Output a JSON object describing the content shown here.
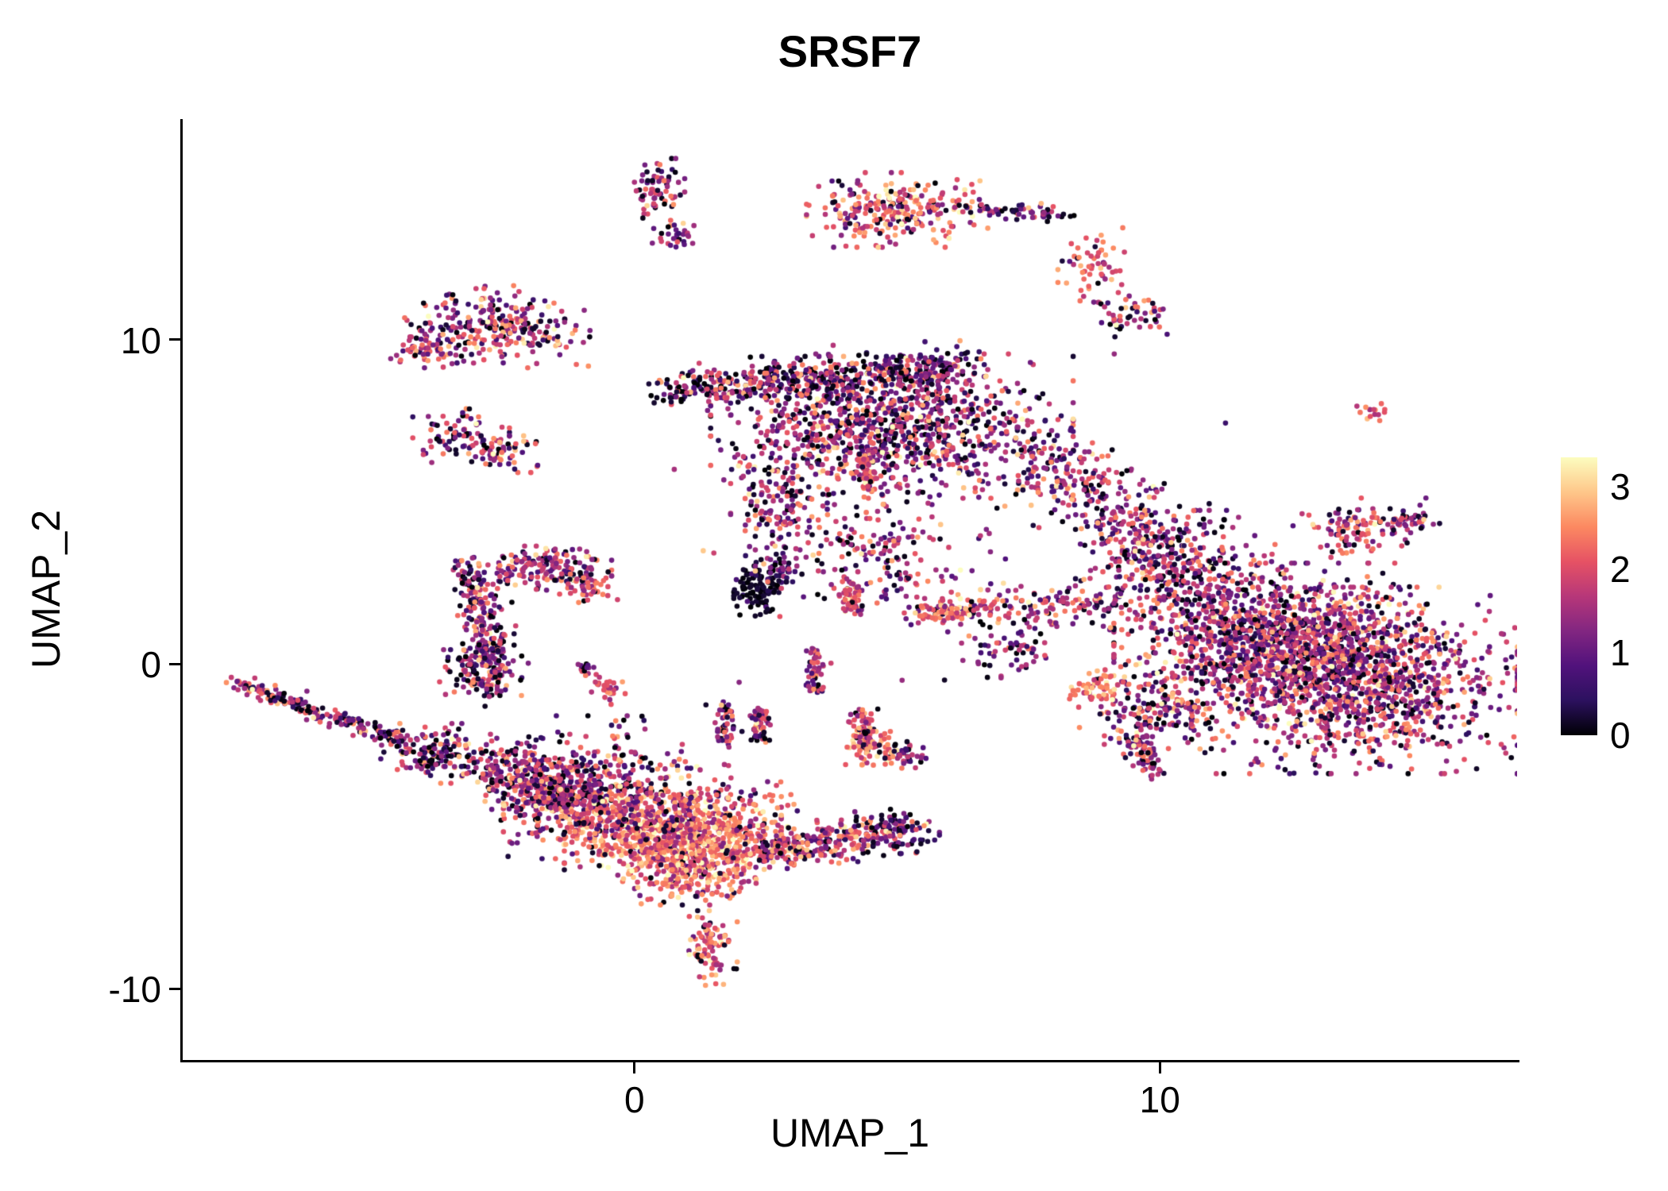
{
  "chart_data": {
    "type": "scatter",
    "title": "SRSF7",
    "xlabel": "UMAP_1",
    "ylabel": "UMAP_2",
    "xlim": [
      -8.6,
      16.8
    ],
    "ylim": [
      -12.2,
      16.8
    ],
    "x_ticks": [
      0,
      10
    ],
    "y_ticks": [
      -10,
      0,
      10
    ],
    "grid": false,
    "point_radius": 3.3,
    "color_max": 3.2,
    "background": "#ffffff",
    "axis_color": "#000000",
    "legend": {
      "position": "right",
      "ticks": [
        0,
        1,
        2,
        3
      ],
      "vmin": 0,
      "vmax": 3.35
    },
    "colormap": [
      {
        "t": 0,
        "c": "#000004"
      },
      {
        "t": 0.125,
        "c": "#2c115f"
      },
      {
        "t": 0.25,
        "c": "#51127c"
      },
      {
        "t": 0.375,
        "c": "#822681"
      },
      {
        "t": 0.5,
        "c": "#b73779"
      },
      {
        "t": 0.625,
        "c": "#e65264"
      },
      {
        "t": 0.75,
        "c": "#fc8961"
      },
      {
        "t": 0.875,
        "c": "#fec78a"
      },
      {
        "t": 1,
        "c": "#fcfdbf"
      }
    ],
    "clusters": [
      {
        "cx": 0.45,
        "cy": 14.55,
        "sx": 0.22,
        "sy": 0.45,
        "n": 70,
        "mean": 1.7,
        "sd": 0.8,
        "p0": 0.15
      },
      {
        "cx": 0.8,
        "cy": 13.25,
        "sx": 0.2,
        "sy": 0.22,
        "n": 30,
        "mean": 1.1,
        "sd": 0.7,
        "p0": 0.2
      },
      {
        "cx": 5.0,
        "cy": 14.0,
        "sx": 0.75,
        "sy": 0.5,
        "n": 260,
        "mean": 2.0,
        "sd": 0.6,
        "p0": 0.08
      },
      {
        "x1": 6.2,
        "y1": 14.1,
        "x2": 8.3,
        "y2": 13.8,
        "jitter": 0.15,
        "n": 60,
        "mean": 1.2,
        "sd": 0.8,
        "p0": 0.25
      },
      {
        "cx": 8.75,
        "cy": 12.3,
        "sx": 0.3,
        "sy": 0.5,
        "n": 60,
        "mean": 1.9,
        "sd": 0.6,
        "p0": 0.1
      },
      {
        "cx": 9.45,
        "cy": 10.75,
        "sx": 0.35,
        "sy": 0.3,
        "n": 50,
        "mean": 1.6,
        "sd": 0.8,
        "p0": 0.15
      },
      {
        "cx": -2.55,
        "cy": 10.4,
        "sx": 0.85,
        "sy": 0.55,
        "n": 280,
        "mean": 1.5,
        "sd": 0.75,
        "p0": 0.12
      },
      {
        "cx": -3.95,
        "cy": 9.7,
        "sx": 0.3,
        "sy": 0.22,
        "n": 45,
        "mean": 1.9,
        "sd": 0.5,
        "p0": 0.08
      },
      {
        "cx": -3.3,
        "cy": 6.95,
        "sx": 0.4,
        "sy": 0.4,
        "n": 80,
        "mean": 1.4,
        "sd": 0.75,
        "p0": 0.15
      },
      {
        "cx": -2.45,
        "cy": 6.55,
        "sx": 0.3,
        "sy": 0.28,
        "n": 50,
        "mean": 1.7,
        "sd": 0.6,
        "p0": 0.1
      },
      {
        "x1": 0.7,
        "y1": 8.45,
        "x2": 6.3,
        "y2": 9.15,
        "jitter": 0.3,
        "n": 520,
        "mean": 1.25,
        "sd": 0.85,
        "p0": 0.22
      },
      {
        "cx": 4.9,
        "cy": 7.3,
        "sx": 1.5,
        "sy": 0.95,
        "n": 950,
        "mean": 1.4,
        "sd": 0.8,
        "p0": 0.15
      },
      {
        "x1": 7.6,
        "y1": 6.6,
        "x2": 9.9,
        "y2": 3.6,
        "jitter": 0.55,
        "n": 320,
        "mean": 1.4,
        "sd": 0.75,
        "p0": 0.15
      },
      {
        "cx": 2.75,
        "cy": 5.1,
        "sx": 0.4,
        "sy": 0.8,
        "n": 140,
        "mean": 1.5,
        "sd": 0.7,
        "p0": 0.12
      },
      {
        "x1": 4.35,
        "y1": 6.6,
        "x2": 4.45,
        "y2": 5.3,
        "jitter": 0.12,
        "n": 70,
        "mean": 2.0,
        "sd": 0.5,
        "p0": 0.05
      },
      {
        "cx": 2.35,
        "cy": 2.3,
        "sx": 0.2,
        "sy": 0.4,
        "n": 100,
        "mean": 0.25,
        "sd": 0.35,
        "p0": 0.7
      },
      {
        "cx": 2.75,
        "cy": 2.9,
        "sx": 0.25,
        "sy": 0.3,
        "n": 40,
        "mean": 0.8,
        "sd": 0.6,
        "p0": 0.3
      },
      {
        "cx": 4.6,
        "cy": 3.4,
        "sx": 1.0,
        "sy": 0.8,
        "n": 150,
        "mean": 1.5,
        "sd": 0.7,
        "p0": 0.15
      },
      {
        "x1": 4.15,
        "y1": 2.6,
        "x2": 4.2,
        "y2": 1.4,
        "jitter": 0.12,
        "n": 60,
        "mean": 1.9,
        "sd": 0.5,
        "p0": 0.08
      },
      {
        "x1": 5.4,
        "y1": 1.65,
        "x2": 9.2,
        "y2": 1.9,
        "jitter": 0.3,
        "n": 180,
        "mean": 1.6,
        "sd": 0.7,
        "p0": 0.12
      },
      {
        "cx": 5.9,
        "cy": 1.6,
        "sx": 0.4,
        "sy": 0.12,
        "n": 60,
        "mean": 2.2,
        "sd": 0.4,
        "p0": 0.05
      },
      {
        "cx": 7.1,
        "cy": 0.5,
        "sx": 0.4,
        "sy": 0.4,
        "n": 60,
        "mean": 1.2,
        "sd": 0.7,
        "p0": 0.2
      },
      {
        "x1": 3.4,
        "y1": 0.4,
        "x2": 3.45,
        "y2": -0.9,
        "jitter": 0.1,
        "n": 50,
        "mean": 1.4,
        "sd": 0.7,
        "p0": 0.15
      },
      {
        "cx": 10.35,
        "cy": 2.9,
        "sx": 0.85,
        "sy": 0.8,
        "n": 320,
        "mean": 1.4,
        "sd": 0.75,
        "p0": 0.15
      },
      {
        "cx": 13.8,
        "cy": 4.2,
        "sx": 0.55,
        "sy": 0.4,
        "n": 110,
        "mean": 1.7,
        "sd": 0.6,
        "p0": 0.1
      },
      {
        "cx": 14.75,
        "cy": 4.4,
        "sx": 0.25,
        "sy": 0.25,
        "n": 30,
        "mean": 1.3,
        "sd": 0.7,
        "p0": 0.15
      },
      {
        "cx": 12.0,
        "cy": 0.7,
        "sx": 1.25,
        "sy": 1.05,
        "n": 950,
        "mean": 1.5,
        "sd": 0.7,
        "p0": 0.12
      },
      {
        "cx": 13.7,
        "cy": -0.5,
        "sx": 1.35,
        "sy": 1.25,
        "n": 1300,
        "mean": 1.55,
        "sd": 0.7,
        "p0": 0.12
      },
      {
        "cx": 9.85,
        "cy": -1.4,
        "sx": 0.6,
        "sy": 0.6,
        "n": 170,
        "mean": 1.5,
        "sd": 0.75,
        "p0": 0.15
      },
      {
        "cx": 8.85,
        "cy": -0.75,
        "sx": 0.3,
        "sy": 0.25,
        "n": 60,
        "mean": 2.2,
        "sd": 0.4,
        "p0": 0.05
      },
      {
        "x1": 9.5,
        "y1": -2.2,
        "x2": 9.9,
        "y2": -3.3,
        "jitter": 0.15,
        "n": 60,
        "mean": 1.5,
        "sd": 0.7,
        "p0": 0.15
      },
      {
        "cx": 14.05,
        "cy": 7.8,
        "sx": 0.13,
        "sy": 0.13,
        "n": 14,
        "mean": 2.1,
        "sd": 0.4,
        "p0": 0.05
      },
      {
        "x1": -7.65,
        "y1": -0.55,
        "x2": -4.4,
        "y2": -2.35,
        "jitter": 0.13,
        "n": 200,
        "mean": 1.4,
        "sd": 0.8,
        "p0": 0.2
      },
      {
        "cx": -3.8,
        "cy": -2.75,
        "sx": 0.45,
        "sy": 0.4,
        "n": 140,
        "mean": 1.4,
        "sd": 0.8,
        "p0": 0.18
      },
      {
        "x1": -3.05,
        "y1": 3.1,
        "x2": -2.7,
        "y2": -0.9,
        "jitter": 0.22,
        "n": 260,
        "mean": 1.4,
        "sd": 0.75,
        "p0": 0.15
      },
      {
        "cx": -1.7,
        "cy": 2.95,
        "sx": 0.55,
        "sy": 0.3,
        "n": 160,
        "mean": 1.6,
        "sd": 0.7,
        "p0": 0.1
      },
      {
        "cx": -0.85,
        "cy": 2.4,
        "sx": 0.25,
        "sy": 0.25,
        "n": 45,
        "mean": 2.1,
        "sd": 0.5,
        "p0": 0.05
      },
      {
        "cx": -2.95,
        "cy": -0.1,
        "sx": 0.35,
        "sy": 0.45,
        "n": 90,
        "mean": 1.3,
        "sd": 0.75,
        "p0": 0.2
      },
      {
        "x1": -2.7,
        "y1": -2.9,
        "x2": -1.3,
        "y2": -4.3,
        "jitter": 0.4,
        "n": 260,
        "mean": 1.5,
        "sd": 0.75,
        "p0": 0.15
      },
      {
        "cx": -0.7,
        "cy": -3.2,
        "sx": 0.8,
        "sy": 0.7,
        "n": 160,
        "mean": 1.4,
        "sd": 0.75,
        "p0": 0.18
      },
      {
        "cx": -0.92,
        "cy": -0.12,
        "sx": 0.1,
        "sy": 0.1,
        "n": 14,
        "mean": 1.2,
        "sd": 0.6,
        "p0": 0.2
      },
      {
        "cx": -0.45,
        "cy": -0.78,
        "sx": 0.16,
        "sy": 0.2,
        "n": 30,
        "mean": 1.9,
        "sd": 0.5,
        "p0": 0.08
      },
      {
        "cx": 0.85,
        "cy": -5.4,
        "sx": 0.95,
        "sy": 0.6,
        "n": 750,
        "mean": 2.3,
        "sd": 0.55,
        "p0": 0.04
      },
      {
        "cx": 0.15,
        "cy": -4.5,
        "sx": 1.15,
        "sy": 0.65,
        "n": 520,
        "mean": 1.8,
        "sd": 0.7,
        "p0": 0.1
      },
      {
        "cx": -1.3,
        "cy": -4.1,
        "sx": 0.7,
        "sy": 0.5,
        "n": 260,
        "mean": 1.6,
        "sd": 0.75,
        "p0": 0.12
      },
      {
        "x1": 2.3,
        "y1": -5.75,
        "x2": 4.7,
        "y2": -5.25,
        "jitter": 0.28,
        "n": 280,
        "mean": 1.7,
        "sd": 0.7,
        "p0": 0.1
      },
      {
        "cx": 5.0,
        "cy": -5.15,
        "sx": 0.35,
        "sy": 0.3,
        "n": 90,
        "mean": 1.0,
        "sd": 0.7,
        "p0": 0.3
      },
      {
        "cx": 1.05,
        "cy": -6.5,
        "sx": 0.55,
        "sy": 0.4,
        "n": 180,
        "mean": 2.1,
        "sd": 0.6,
        "p0": 0.06
      },
      {
        "x1": 1.7,
        "y1": -1.3,
        "x2": 1.75,
        "y2": -2.5,
        "jitter": 0.1,
        "n": 55,
        "mean": 1.2,
        "sd": 0.7,
        "p0": 0.25
      },
      {
        "x1": 2.35,
        "y1": -1.35,
        "x2": 2.4,
        "y2": -2.4,
        "jitter": 0.1,
        "n": 55,
        "mean": 1.3,
        "sd": 0.7,
        "p0": 0.2
      },
      {
        "x1": 4.3,
        "y1": -1.35,
        "x2": 4.35,
        "y2": -2.55,
        "jitter": 0.12,
        "n": 80,
        "mean": 1.8,
        "sd": 0.6,
        "p0": 0.1
      },
      {
        "cx": 4.55,
        "cy": -2.65,
        "sx": 0.3,
        "sy": 0.25,
        "n": 60,
        "mean": 2.2,
        "sd": 0.5,
        "p0": 0.05
      },
      {
        "cx": 5.2,
        "cy": -2.85,
        "sx": 0.2,
        "sy": 0.2,
        "n": 30,
        "mean": 1.1,
        "sd": 0.6,
        "p0": 0.25
      },
      {
        "cx": 1.45,
        "cy": -8.75,
        "sx": 0.22,
        "sy": 0.5,
        "n": 90,
        "mean": 2.0,
        "sd": 0.55,
        "p0": 0.08
      },
      {
        "cx": 5.5,
        "cy": 4.5,
        "sx": 2.5,
        "sy": 2.2,
        "n": 90,
        "mean": 1.4,
        "sd": 0.8,
        "p0": 0.2
      }
    ]
  }
}
